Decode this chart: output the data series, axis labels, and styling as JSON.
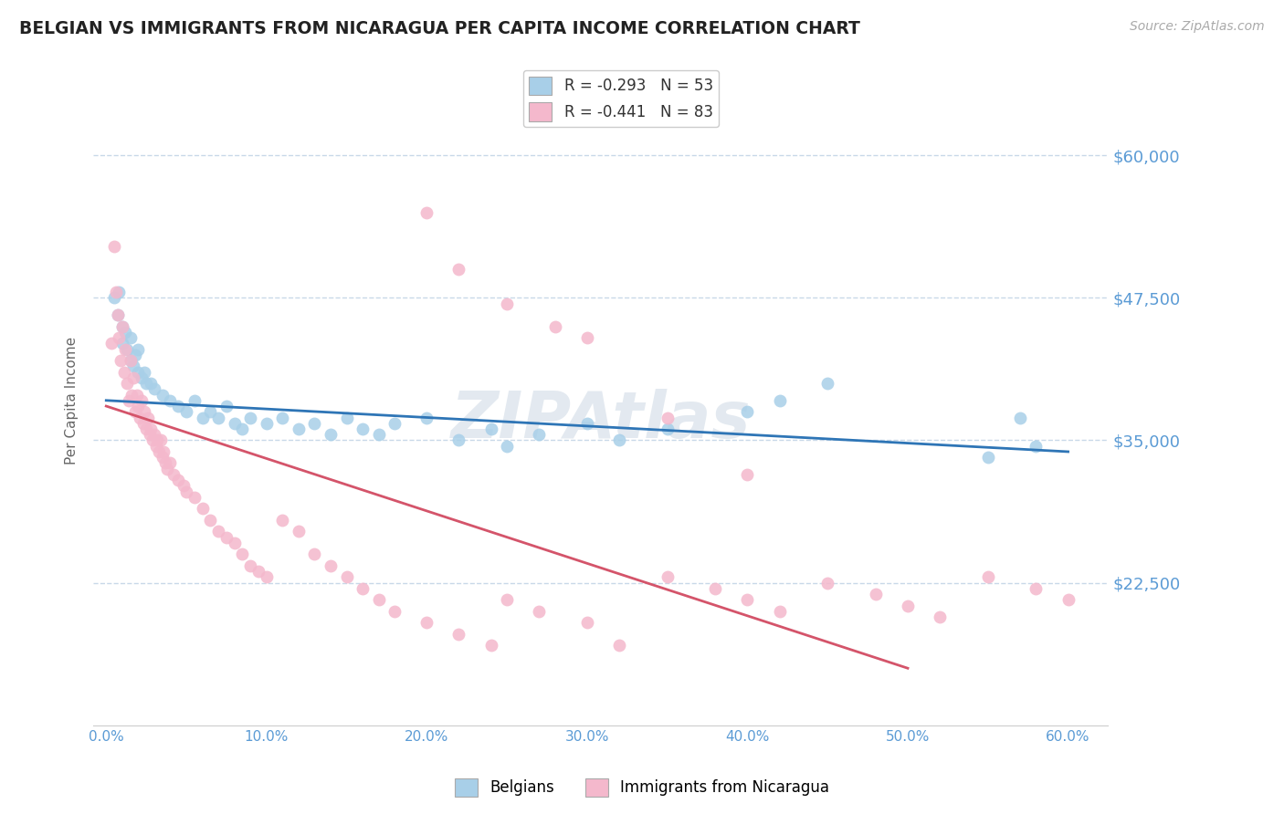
{
  "title": "BELGIAN VS IMMIGRANTS FROM NICARAGUA PER CAPITA INCOME CORRELATION CHART",
  "source": "Source: ZipAtlas.com",
  "ylabel": "Per Capita Income",
  "xlim": [
    -0.008,
    0.625
  ],
  "ylim": [
    10000,
    67000
  ],
  "yticks": [
    22500,
    35000,
    47500,
    60000
  ],
  "ytick_labels": [
    "$22,500",
    "$35,000",
    "$47,500",
    "$60,000"
  ],
  "xticks": [
    0.0,
    0.1,
    0.2,
    0.3,
    0.4,
    0.5,
    0.6
  ],
  "xtick_labels": [
    "0.0%",
    "10.0%",
    "20.0%",
    "30.0%",
    "40.0%",
    "50.0%",
    "60.0%"
  ],
  "blue_color": "#a8cfe8",
  "pink_color": "#f4b8cc",
  "blue_line_color": "#2e75b6",
  "pink_line_color": "#d4546a",
  "axis_color": "#5b9bd5",
  "grid_color": "#c8d8e8",
  "background_color": "#ffffff",
  "legend_label_blue": "Belgians",
  "legend_label_pink": "Immigrants from Nicaragua",
  "watermark": "ZIPAtlas",
  "blue_scatter_x": [
    0.005,
    0.007,
    0.008,
    0.01,
    0.01,
    0.012,
    0.013,
    0.015,
    0.015,
    0.017,
    0.018,
    0.02,
    0.02,
    0.022,
    0.024,
    0.025,
    0.028,
    0.03,
    0.035,
    0.04,
    0.045,
    0.05,
    0.055,
    0.06,
    0.065,
    0.07,
    0.075,
    0.08,
    0.085,
    0.09,
    0.1,
    0.11,
    0.12,
    0.13,
    0.14,
    0.15,
    0.16,
    0.17,
    0.18,
    0.2,
    0.22,
    0.24,
    0.25,
    0.27,
    0.3,
    0.32,
    0.35,
    0.4,
    0.42,
    0.45,
    0.55,
    0.57,
    0.58
  ],
  "blue_scatter_y": [
    47500,
    46000,
    48000,
    45000,
    43500,
    44500,
    43000,
    42000,
    44000,
    41500,
    42500,
    41000,
    43000,
    40500,
    41000,
    40000,
    40000,
    39500,
    39000,
    38500,
    38000,
    37500,
    38500,
    37000,
    37500,
    37000,
    38000,
    36500,
    36000,
    37000,
    36500,
    37000,
    36000,
    36500,
    35500,
    37000,
    36000,
    35500,
    36500,
    37000,
    35000,
    36000,
    34500,
    35500,
    36500,
    35000,
    36000,
    37500,
    38500,
    40000,
    33500,
    37000,
    34500
  ],
  "pink_scatter_x": [
    0.003,
    0.005,
    0.006,
    0.007,
    0.008,
    0.009,
    0.01,
    0.011,
    0.012,
    0.013,
    0.014,
    0.015,
    0.016,
    0.017,
    0.018,
    0.019,
    0.02,
    0.021,
    0.022,
    0.023,
    0.024,
    0.025,
    0.026,
    0.027,
    0.028,
    0.029,
    0.03,
    0.031,
    0.032,
    0.033,
    0.034,
    0.035,
    0.036,
    0.037,
    0.038,
    0.04,
    0.042,
    0.045,
    0.048,
    0.05,
    0.055,
    0.06,
    0.065,
    0.07,
    0.075,
    0.08,
    0.085,
    0.09,
    0.095,
    0.1,
    0.11,
    0.12,
    0.13,
    0.14,
    0.15,
    0.16,
    0.17,
    0.18,
    0.2,
    0.22,
    0.24,
    0.25,
    0.27,
    0.3,
    0.32,
    0.35,
    0.38,
    0.4,
    0.42,
    0.45,
    0.48,
    0.5,
    0.52,
    0.55,
    0.58,
    0.6,
    0.2,
    0.22,
    0.25,
    0.28,
    0.3,
    0.35,
    0.4
  ],
  "pink_scatter_y": [
    43500,
    52000,
    48000,
    46000,
    44000,
    42000,
    45000,
    41000,
    43000,
    40000,
    38500,
    42000,
    39000,
    40500,
    37500,
    39000,
    38000,
    37000,
    38500,
    36500,
    37500,
    36000,
    37000,
    35500,
    36000,
    35000,
    35500,
    34500,
    35000,
    34000,
    35000,
    33500,
    34000,
    33000,
    32500,
    33000,
    32000,
    31500,
    31000,
    30500,
    30000,
    29000,
    28000,
    27000,
    26500,
    26000,
    25000,
    24000,
    23500,
    23000,
    28000,
    27000,
    25000,
    24000,
    23000,
    22000,
    21000,
    20000,
    19000,
    18000,
    17000,
    21000,
    20000,
    19000,
    17000,
    23000,
    22000,
    21000,
    20000,
    22500,
    21500,
    20500,
    19500,
    23000,
    22000,
    21000,
    55000,
    50000,
    47000,
    45000,
    44000,
    37000,
    32000
  ]
}
